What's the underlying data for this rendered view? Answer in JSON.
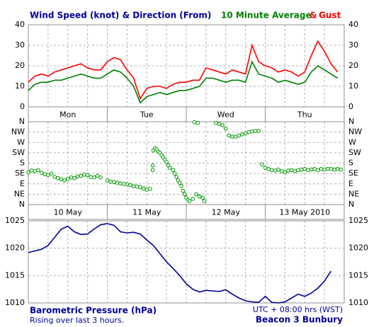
{
  "chart_data": [
    {
      "type": "line",
      "title": "Wind Speed (knot) & Direction (From)",
      "legend_separator": "&",
      "xlim": [
        0,
        96
      ],
      "x": [
        0,
        2,
        4,
        6,
        8,
        10,
        12,
        14,
        16,
        18,
        20,
        22,
        24,
        26,
        28,
        30,
        32,
        34,
        36,
        38,
        40,
        42,
        44,
        46,
        48,
        50,
        52,
        54,
        56,
        58,
        60,
        62,
        64,
        66,
        68,
        70,
        72,
        74,
        76,
        78,
        80,
        82,
        84,
        86,
        88,
        90,
        92,
        94
      ],
      "series": [
        {
          "name": "10 Minute Average",
          "color": "#008000",
          "values": [
            8,
            11,
            12,
            12,
            13,
            13,
            14,
            15,
            16,
            15,
            14,
            14,
            16,
            18,
            17,
            14,
            10,
            2,
            5,
            6,
            7,
            6,
            7,
            8,
            8,
            9,
            10,
            14,
            14,
            13,
            12,
            13,
            13,
            12,
            22,
            16,
            15,
            14,
            12,
            13,
            12,
            11,
            12,
            17,
            20,
            18,
            16,
            14
          ]
        },
        {
          "name": "Gust",
          "color": "#ff0000",
          "values": [
            12,
            15,
            16,
            15,
            17,
            18,
            19,
            20,
            21,
            19,
            18,
            18,
            22,
            24,
            23,
            18,
            14,
            4,
            9,
            10,
            10,
            9,
            11,
            12,
            12,
            13,
            13,
            19,
            18,
            17,
            16,
            18,
            17,
            16,
            30,
            22,
            20,
            19,
            17,
            18,
            17,
            15,
            17,
            25,
            32,
            27,
            21,
            17
          ]
        }
      ],
      "ylim": [
        0,
        40
      ],
      "yticks": [
        0,
        10,
        20,
        30,
        40
      ],
      "grid": true,
      "day_labels": [
        "Mon",
        "Tue",
        "Wed",
        "Thu"
      ]
    },
    {
      "type": "scatter",
      "xlim": [
        0,
        96
      ],
      "series": [
        {
          "color": "#009900",
          "x": [
            0,
            1,
            2,
            3,
            4,
            5,
            6,
            7,
            8,
            9,
            10,
            11,
            12,
            13,
            14,
            15,
            16,
            17,
            18,
            19,
            20,
            21,
            22,
            24,
            25,
            26,
            27,
            28,
            29,
            30,
            31,
            32,
            33,
            34,
            35,
            36,
            37,
            37.8,
            37.8,
            38,
            38.5,
            39,
            39.5,
            40,
            40.5,
            41,
            41.5,
            42,
            42.5,
            43,
            44,
            44.5,
            45,
            45.5,
            46,
            46.5,
            47,
            47.5,
            48,
            48.5,
            49,
            50,
            50.5,
            51,
            51.5,
            52,
            53,
            53.5,
            57,
            58,
            59,
            60,
            61,
            62,
            63,
            64,
            65,
            66,
            67,
            68,
            69,
            70,
            71,
            72,
            73,
            74,
            75,
            76,
            77,
            78,
            79,
            80,
            81,
            82,
            83,
            84,
            85,
            86,
            87,
            88,
            89,
            90,
            91,
            92,
            93,
            94,
            95
          ],
          "values": [
            140,
            148,
            145,
            150,
            138,
            132,
            128,
            135,
            120,
            115,
            110,
            105,
            112,
            118,
            115,
            122,
            125,
            130,
            128,
            120,
            118,
            125,
            118,
            105,
            100,
            98,
            95,
            92,
            90,
            88,
            85,
            80,
            78,
            75,
            70,
            65,
            68,
            170,
            150,
            235,
            245,
            240,
            230,
            225,
            215,
            205,
            195,
            185,
            170,
            160,
            150,
            135,
            120,
            105,
            95,
            80,
            60,
            45,
            30,
            20,
            15,
            25,
            358,
            45,
            355,
            35,
            30,
            15,
            355,
            350,
            345,
            330,
            300,
            295,
            295,
            300,
            305,
            310,
            315,
            318,
            320,
            320,
            175,
            160,
            155,
            150,
            148,
            152,
            145,
            140,
            148,
            150,
            145,
            150,
            152,
            155,
            150,
            152,
            155,
            150,
            155,
            152,
            155,
            155,
            152,
            155,
            152
          ]
        }
      ],
      "ylim": [
        0,
        360
      ],
      "yticks": [
        {
          "value": 0,
          "label": "N"
        },
        {
          "value": 45,
          "label": "NE"
        },
        {
          "value": 90,
          "label": "E"
        },
        {
          "value": 135,
          "label": "SE"
        },
        {
          "value": 180,
          "label": "S"
        },
        {
          "value": 225,
          "label": "SW"
        },
        {
          "value": 270,
          "label": "W"
        },
        {
          "value": 315,
          "label": "NW"
        },
        {
          "value": 360,
          "label": "N"
        }
      ],
      "grid": true,
      "day_labels": [
        "10 May",
        "11 May",
        "12 May",
        "13 May 2010"
      ]
    },
    {
      "type": "line",
      "title": "Barometric Pressure (hPa)",
      "subtitle": "Rising over last 3 hours.",
      "annotations": [
        "UTC + 08:00 hrs (WST)",
        "Beacon 3 Bunbury"
      ],
      "xlim": [
        0,
        96
      ],
      "x": [
        0,
        2,
        4,
        6,
        8,
        10,
        12,
        14,
        16,
        18,
        20,
        22,
        24,
        26,
        28,
        30,
        32,
        34,
        36,
        38,
        40,
        42,
        44,
        46,
        48,
        50,
        52,
        54,
        56,
        58,
        60,
        62,
        64,
        66,
        68,
        70,
        72,
        74,
        76,
        78,
        80,
        82,
        84,
        86,
        88,
        90,
        92
      ],
      "series": [
        {
          "color": "#000099",
          "values": [
            1019.2,
            1019.5,
            1019.8,
            1020.5,
            1022,
            1023.5,
            1024,
            1023,
            1022.5,
            1022.6,
            1023.5,
            1024.3,
            1024.5,
            1024.2,
            1023,
            1022.8,
            1022.9,
            1022.6,
            1021.5,
            1020.5,
            1019,
            1017.5,
            1016.3,
            1015,
            1013.5,
            1012.5,
            1012,
            1012.3,
            1012.2,
            1012.1,
            1012.4,
            1011.6,
            1010.9,
            1010.4,
            1010.2,
            1010.1,
            1011.2,
            1010.1,
            1010,
            1010.2,
            1010.9,
            1011.6,
            1011.2,
            1011.8,
            1012.7,
            1014,
            1015.8
          ]
        }
      ],
      "ylim": [
        1010,
        1025
      ],
      "yticks": [
        1010,
        1015,
        1020,
        1025
      ],
      "grid": true
    }
  ]
}
